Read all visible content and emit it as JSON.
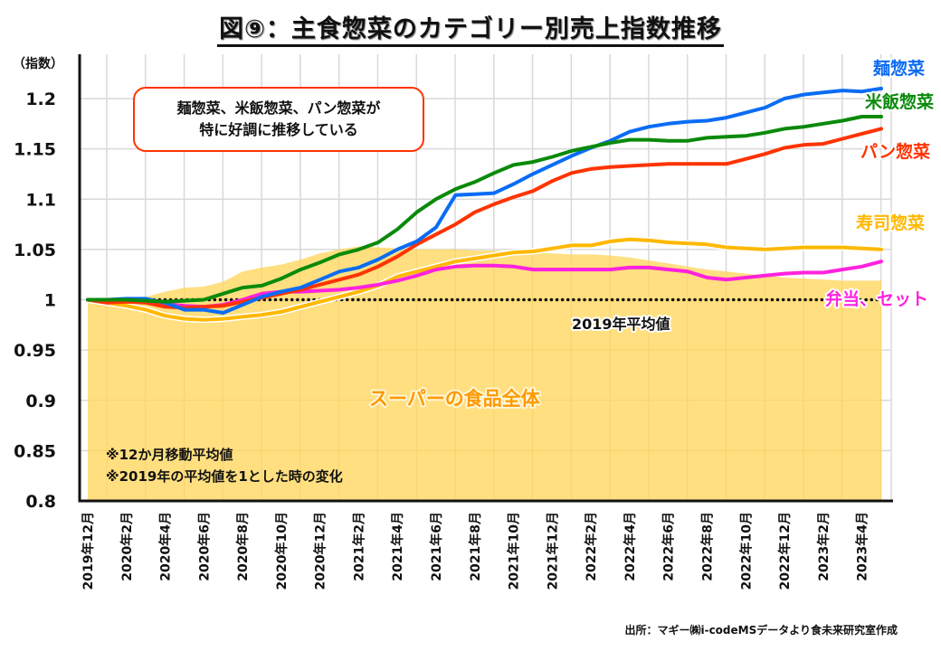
{
  "title": "図⑨：主食惣菜のカテゴリー別売上指数推移",
  "callout": {
    "line1": "麺惣菜、米飯惣菜、パン惣菜が",
    "line2": "特に好調に推移している"
  },
  "notes": [
    "※12か月移動平均値",
    "※2019年の平均値を1とした時の変化"
  ],
  "baseline_label": "2019年平均値",
  "area_label": "スーパーの食品全体",
  "source": "出所：マギー㈱i-codeMSデータより食未来研究室作成",
  "chart_data": {
    "type": "line",
    "title": "図⑨：主食惣菜のカテゴリー別売上指数推移",
    "xlabel": "",
    "ylabel": "（指数）",
    "ylim": [
      0.8,
      1.2
    ],
    "yticks": [
      0.8,
      0.85,
      0.9,
      0.95,
      1,
      1.05,
      1.1,
      1.15,
      1.2
    ],
    "ytick_labels": [
      "0.8",
      "0.85",
      "0.9",
      "0.95",
      "1",
      "1.05",
      "1.1",
      "1.15",
      "1.2"
    ],
    "grid": true,
    "legend": "inline-right",
    "x": [
      "2019年12月",
      "2020年1月",
      "2020年2月",
      "2020年3月",
      "2020年4月",
      "2020年5月",
      "2020年6月",
      "2020年7月",
      "2020年8月",
      "2020年9月",
      "2020年10月",
      "2020年11月",
      "2020年12月",
      "2021年1月",
      "2021年2月",
      "2021年3月",
      "2021年4月",
      "2021年5月",
      "2021年6月",
      "2021年7月",
      "2021年8月",
      "2021年9月",
      "2021年10月",
      "2021年11月",
      "2021年12月",
      "2022年1月",
      "2022年2月",
      "2022年3月",
      "2022年4月",
      "2022年5月",
      "2022年6月",
      "2022年7月",
      "2022年8月",
      "2022年9月",
      "2022年10月",
      "2022年11月",
      "2022年12月",
      "2023年1月",
      "2023年2月",
      "2023年3月",
      "2023年4月",
      "2023年5月"
    ],
    "xtick_labels": [
      "2019年12月",
      "2020年2月",
      "2020年4月",
      "2020年6月",
      "2020年8月",
      "2020年10月",
      "2020年12月",
      "2021年2月",
      "2021年4月",
      "2021年6月",
      "2021年8月",
      "2021年10月",
      "2021年12月",
      "2022年2月",
      "2022年4月",
      "2022年6月",
      "2022年8月",
      "2022年10月",
      "2022年12月",
      "2023年2月",
      "2023年4月"
    ],
    "area": {
      "name": "スーパーの食品全体",
      "color": "#ffdf80",
      "values": [
        1.0,
        0.998,
        0.999,
        1.003,
        1.008,
        1.012,
        1.013,
        1.018,
        1.028,
        1.032,
        1.035,
        1.04,
        1.046,
        1.05,
        1.053,
        1.052,
        1.051,
        1.05,
        1.05,
        1.05,
        1.049,
        1.049,
        1.048,
        1.047,
        1.046,
        1.045,
        1.045,
        1.044,
        1.042,
        1.039,
        1.036,
        1.033,
        1.03,
        1.028,
        1.026,
        1.024,
        1.022,
        1.021,
        1.02,
        1.019,
        1.019,
        1.019
      ]
    },
    "baseline": {
      "name": "2019年平均値",
      "value": 1.0
    },
    "series": [
      {
        "name": "麺惣菜",
        "color": "#0a6cf5",
        "values": [
          1.0,
          1.0,
          1.001,
          1.001,
          0.997,
          0.99,
          0.99,
          0.987,
          0.995,
          1.003,
          1.008,
          1.012,
          1.02,
          1.028,
          1.032,
          1.04,
          1.05,
          1.058,
          1.072,
          1.104,
          1.105,
          1.106,
          1.115,
          1.125,
          1.134,
          1.143,
          1.151,
          1.158,
          1.167,
          1.172,
          1.175,
          1.177,
          1.178,
          1.181,
          1.186,
          1.191,
          1.2,
          1.204,
          1.206,
          1.208,
          1.207,
          1.21
        ]
      },
      {
        "name": "米飯惣菜",
        "color": "#0a8a0a",
        "values": [
          1.0,
          1.0,
          1.0,
          0.999,
          0.998,
          0.999,
          1.0,
          1.006,
          1.012,
          1.014,
          1.021,
          1.03,
          1.037,
          1.045,
          1.05,
          1.057,
          1.07,
          1.087,
          1.1,
          1.11,
          1.117,
          1.126,
          1.134,
          1.137,
          1.142,
          1.148,
          1.152,
          1.156,
          1.159,
          1.159,
          1.158,
          1.158,
          1.161,
          1.162,
          1.163,
          1.166,
          1.17,
          1.172,
          1.175,
          1.178,
          1.182,
          1.182
        ]
      },
      {
        "name": "パン惣菜",
        "color": "#ff3300",
        "values": [
          1.0,
          0.997,
          0.998,
          0.997,
          0.993,
          0.992,
          0.993,
          0.994,
          0.998,
          1.002,
          1.006,
          1.01,
          1.015,
          1.02,
          1.025,
          1.033,
          1.043,
          1.055,
          1.065,
          1.075,
          1.087,
          1.095,
          1.102,
          1.108,
          1.118,
          1.126,
          1.13,
          1.132,
          1.133,
          1.134,
          1.135,
          1.135,
          1.135,
          1.135,
          1.14,
          1.145,
          1.151,
          1.154,
          1.155,
          1.16,
          1.165,
          1.17
        ]
      },
      {
        "name": "寿司惣菜",
        "color": "#ffb800",
        "values": [
          1.0,
          0.997,
          0.994,
          0.99,
          0.984,
          0.981,
          0.98,
          0.981,
          0.983,
          0.985,
          0.988,
          0.993,
          0.998,
          1.003,
          1.008,
          1.014,
          1.023,
          1.028,
          1.033,
          1.038,
          1.041,
          1.044,
          1.047,
          1.048,
          1.051,
          1.054,
          1.054,
          1.058,
          1.06,
          1.059,
          1.057,
          1.056,
          1.055,
          1.052,
          1.051,
          1.05,
          1.051,
          1.052,
          1.052,
          1.052,
          1.051,
          1.05
        ]
      },
      {
        "name": "弁当、セット",
        "color": "#ff22dd",
        "values": [
          1.0,
          0.997,
          0.999,
          0.998,
          0.996,
          0.994,
          0.993,
          0.995,
          1.0,
          1.006,
          1.008,
          1.008,
          1.009,
          1.01,
          1.012,
          1.015,
          1.019,
          1.024,
          1.03,
          1.033,
          1.034,
          1.034,
          1.033,
          1.03,
          1.03,
          1.03,
          1.03,
          1.03,
          1.032,
          1.032,
          1.03,
          1.028,
          1.022,
          1.02,
          1.022,
          1.024,
          1.026,
          1.027,
          1.027,
          1.03,
          1.033,
          1.038
        ]
      }
    ]
  }
}
